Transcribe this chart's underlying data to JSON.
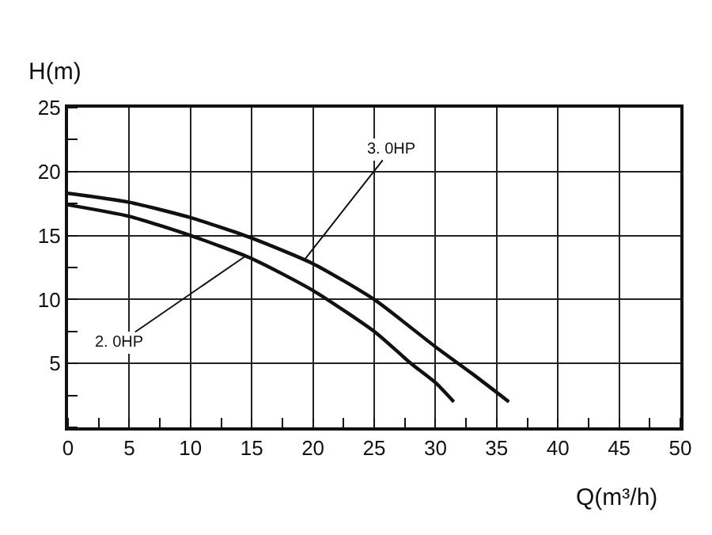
{
  "chart_data": {
    "type": "line",
    "xlabel": "Q(m³/h)",
    "ylabel": "H(m)",
    "series": [
      {
        "color": "#111111",
        "x": [
          0,
          5,
          10,
          15,
          20,
          25,
          30,
          33,
          36
        ],
        "values": [
          18.3,
          17.6,
          16.4,
          14.8,
          12.8,
          10,
          6.3,
          4.2,
          2
        ]
      },
      {
        "color": "#111111",
        "x": [
          0,
          5,
          10,
          15,
          20,
          25,
          28,
          30,
          31.5
        ],
        "values": [
          17.4,
          16.5,
          15,
          13.2,
          10.7,
          7.5,
          5,
          3.5,
          2
        ]
      }
    ],
    "annotations": [
      {
        "text": "3. 0HP",
        "x": 19.3,
        "y": 13.1
      },
      {
        "text": "2. 0HP",
        "x": 14.5,
        "y": 13.4
      }
    ],
    "xlim": [
      0,
      50
    ],
    "xticks": [
      0,
      5,
      10,
      15,
      20,
      25,
      30,
      35,
      40,
      45,
      50
    ],
    "ylim": [
      0,
      25
    ],
    "yticks": [
      5,
      10,
      15,
      20,
      25
    ],
    "grid": true,
    "marker": "none",
    "line_style": "solid",
    "legend": false
  }
}
